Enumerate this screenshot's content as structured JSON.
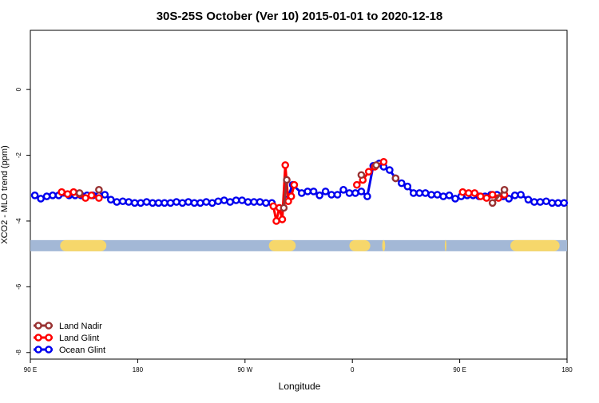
{
  "chart_data": {
    "type": "line",
    "title": "30S-25S October (Ver 10)   2015-01-01 to 2020-12-18",
    "xlabel": "Longitude",
    "ylabel": "XCO2 - MLO trend (ppm)",
    "xlim": [
      90,
      450
    ],
    "ylim": [
      -8.2,
      1.8
    ],
    "grid": false,
    "legend_position": "bottom-left",
    "x_ticks": [
      {
        "value": 90,
        "label": "90 E"
      },
      {
        "value": 162,
        "label": "180"
      },
      {
        "value": 234,
        "label": "90 W"
      },
      {
        "value": 306,
        "label": "0"
      },
      {
        "value": 378,
        "label": "90 E"
      },
      {
        "value": 450,
        "label": "180"
      }
    ],
    "y_ticks": [
      {
        "value": 0,
        "label": "0"
      },
      {
        "value": -2,
        "label": "-2"
      },
      {
        "value": -4,
        "label": "-4"
      },
      {
        "value": -6,
        "label": "-6"
      },
      {
        "value": -8,
        "label": "-8"
      }
    ],
    "series": [
      {
        "name": "Ocean Glint",
        "color": "#0000ee",
        "x": [
          93,
          97,
          101,
          105,
          109,
          116,
          120,
          124,
          128,
          132,
          136,
          140,
          144,
          148,
          152,
          156,
          160,
          164,
          168,
          172,
          176,
          180,
          184,
          188,
          192,
          196,
          200,
          204,
          208,
          212,
          216,
          220,
          224,
          228,
          232,
          236,
          240,
          244,
          248,
          252,
          262,
          266,
          272,
          276,
          280,
          284,
          288,
          292,
          296,
          300,
          304,
          308,
          312,
          316,
          320,
          324,
          327,
          331,
          335,
          339,
          343,
          347,
          351,
          355,
          359,
          363,
          367,
          371,
          375,
          379,
          383,
          387,
          391,
          395,
          399,
          403,
          407,
          411,
          415,
          419,
          424,
          428,
          432,
          436,
          440,
          444,
          448
        ],
        "y": [
          -3.22,
          -3.32,
          -3.25,
          -3.22,
          -3.22,
          -3.22,
          -3.22,
          -3.22,
          -3.22,
          -3.22,
          -3.22,
          -3.2,
          -3.35,
          -3.42,
          -3.4,
          -3.42,
          -3.45,
          -3.45,
          -3.42,
          -3.45,
          -3.45,
          -3.45,
          -3.45,
          -3.42,
          -3.45,
          -3.42,
          -3.45,
          -3.45,
          -3.42,
          -3.45,
          -3.4,
          -3.37,
          -3.42,
          -3.37,
          -3.37,
          -3.42,
          -3.42,
          -3.42,
          -3.45,
          -3.45,
          -3.35,
          -2.9,
          -3.15,
          -3.1,
          -3.1,
          -3.22,
          -3.1,
          -3.2,
          -3.2,
          -3.05,
          -3.15,
          -3.15,
          -3.1,
          -3.25,
          -2.32,
          -2.25,
          -2.35,
          -2.45,
          -2.7,
          -2.85,
          -2.95,
          -3.15,
          -3.15,
          -3.15,
          -3.2,
          -3.2,
          -3.25,
          -3.22,
          -3.32,
          -3.25,
          -3.22,
          -3.22,
          -3.25,
          -3.25,
          -3.2,
          -3.2,
          -3.25,
          -3.32,
          -3.22,
          -3.2,
          -3.35,
          -3.42,
          -3.42,
          -3.4,
          -3.45,
          -3.45,
          -3.45
        ]
      },
      {
        "name": "Land Glint",
        "color": "#ff0000",
        "x": [
          111,
          115,
          119,
          123,
          127,
          131,
          136,
          253,
          255,
          257,
          259,
          261,
          263,
          265,
          267,
          309,
          313,
          317,
          321,
          327,
          380,
          384,
          388,
          392,
          396,
          400,
          404,
          408
        ],
        "y": [
          -3.12,
          -3.18,
          -3.12,
          -3.18,
          -3.3,
          -3.22,
          -3.3,
          -3.55,
          -4.0,
          -3.6,
          -3.95,
          -2.3,
          -3.4,
          -3.25,
          -2.9,
          -2.9,
          -2.75,
          -2.5,
          -2.35,
          -2.2,
          -3.12,
          -3.15,
          -3.15,
          -3.25,
          -3.3,
          -3.2,
          -3.3,
          -3.2
        ]
      },
      {
        "name": "Land Nadir",
        "color": "#993333",
        "x": [
          123,
          136,
          260,
          262,
          312,
          322,
          335,
          400,
          408
        ],
        "y": [
          -3.15,
          -3.05,
          -3.6,
          -2.75,
          -2.6,
          -2.3,
          -2.7,
          -3.45,
          -3.05
        ]
      }
    ],
    "land_sea_strip": {
      "y": -4.75,
      "ocean_color": "#a3b8d6",
      "land_color": "#f6d76b",
      "land_segments": [
        [
          110,
          141
        ],
        [
          250,
          268
        ],
        [
          304,
          318
        ],
        [
          326,
          328
        ],
        [
          368,
          368
        ],
        [
          412,
          445
        ]
      ]
    }
  }
}
